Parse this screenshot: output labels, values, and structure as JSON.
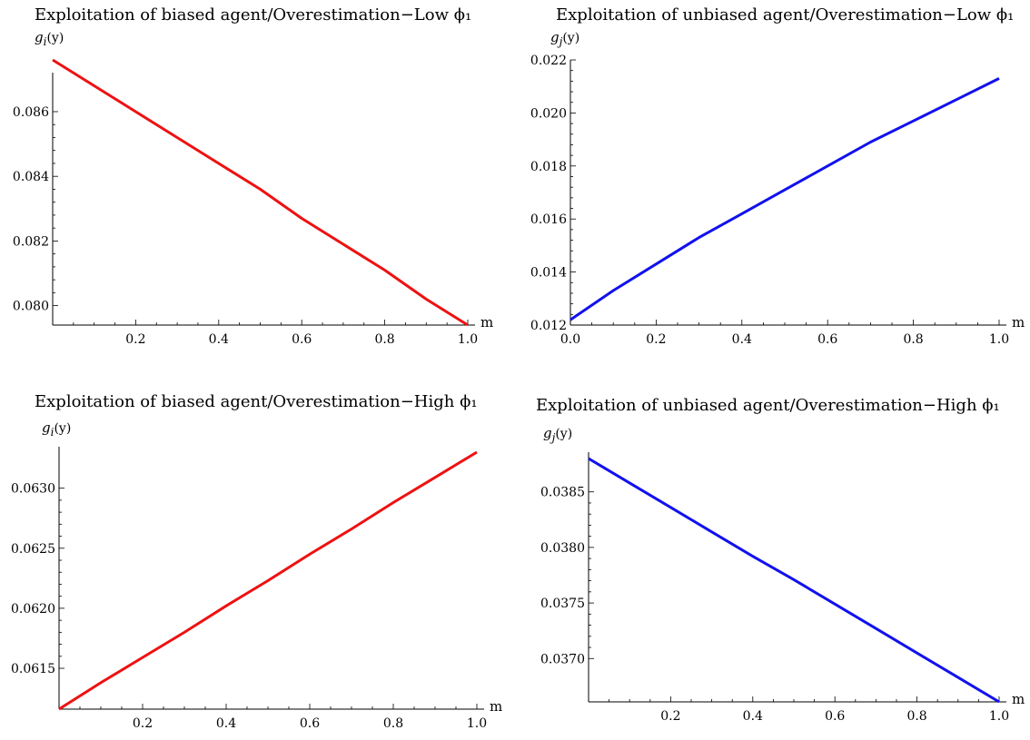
{
  "chart_data": [
    {
      "type": "line",
      "title": "Exploitation of  biased agent/Overestimation−Low ϕ₁",
      "ylabel_base": "g",
      "ylabel_sub": "i",
      "ylabel_arg": "(y)",
      "xlabel": "m",
      "xlim": [
        0,
        1
      ],
      "ylim": [
        0.0794,
        0.0876
      ],
      "xticks": [
        {
          "value": 0.2,
          "label": "0.2"
        },
        {
          "value": 0.4,
          "label": "0.4"
        },
        {
          "value": 0.6,
          "label": "0.6"
        },
        {
          "value": 0.8,
          "label": "0.8"
        },
        {
          "value": 1.0,
          "label": "1.0"
        }
      ],
      "yticks": [
        {
          "value": 0.08,
          "label": "0.080"
        },
        {
          "value": 0.082,
          "label": "0.082"
        },
        {
          "value": 0.084,
          "label": "0.084"
        },
        {
          "value": 0.086,
          "label": "0.086"
        }
      ],
      "color": "#ee1111",
      "series": [
        {
          "x": [
            0,
            0.1,
            0.2,
            0.3,
            0.4,
            0.5,
            0.6,
            0.7,
            0.8,
            0.9,
            1.0
          ],
          "y": [
            0.0876,
            0.0868,
            0.086,
            0.0852,
            0.0844,
            0.0836,
            0.0827,
            0.0819,
            0.0811,
            0.0802,
            0.0794
          ]
        }
      ]
    },
    {
      "type": "line",
      "title": "Exploitation of  unbiased agent/Overestimation−Low ϕ₁",
      "ylabel_base": "g",
      "ylabel_sub": "j",
      "ylabel_arg": "(y)",
      "xlabel": "m",
      "xlim": [
        0,
        1
      ],
      "ylim": [
        0.012,
        0.022
      ],
      "xticks": [
        {
          "value": 0.0,
          "label": "0.0"
        },
        {
          "value": 0.2,
          "label": "0.2"
        },
        {
          "value": 0.4,
          "label": "0.4"
        },
        {
          "value": 0.6,
          "label": "0.6"
        },
        {
          "value": 0.8,
          "label": "0.8"
        },
        {
          "value": 1.0,
          "label": "1.0"
        }
      ],
      "yticks": [
        {
          "value": 0.012,
          "label": "0.012"
        },
        {
          "value": 0.014,
          "label": "0.014"
        },
        {
          "value": 0.016,
          "label": "0.016"
        },
        {
          "value": 0.018,
          "label": "0.018"
        },
        {
          "value": 0.02,
          "label": "0.020"
        },
        {
          "value": 0.022,
          "label": "0.022"
        }
      ],
      "color": "#1111ee",
      "series": [
        {
          "x": [
            0,
            0.1,
            0.2,
            0.3,
            0.4,
            0.5,
            0.6,
            0.7,
            0.8,
            0.9,
            1.0
          ],
          "y": [
            0.0122,
            0.0133,
            0.0143,
            0.0153,
            0.0162,
            0.0171,
            0.018,
            0.0189,
            0.0197,
            0.0205,
            0.0213
          ]
        }
      ]
    },
    {
      "type": "line",
      "title": "Exploitation of  biased agent/Overestimation−High ϕ₁",
      "ylabel_base": "g",
      "ylabel_sub": "i",
      "ylabel_arg": "(y)",
      "xlabel": "m",
      "xlim": [
        0,
        1
      ],
      "ylim": [
        0.06116,
        0.0633
      ],
      "xticks": [
        {
          "value": 0.2,
          "label": "0.2"
        },
        {
          "value": 0.4,
          "label": "0.4"
        },
        {
          "value": 0.6,
          "label": "0.6"
        },
        {
          "value": 0.8,
          "label": "0.8"
        },
        {
          "value": 1.0,
          "label": "1.0"
        }
      ],
      "yticks": [
        {
          "value": 0.0615,
          "label": "0.0615"
        },
        {
          "value": 0.062,
          "label": "0.0620"
        },
        {
          "value": 0.0625,
          "label": "0.0625"
        },
        {
          "value": 0.063,
          "label": "0.0630"
        }
      ],
      "color": "#ee1111",
      "series": [
        {
          "x": [
            0,
            0.1,
            0.2,
            0.3,
            0.4,
            0.5,
            0.6,
            0.7,
            0.8,
            0.9,
            1.0
          ],
          "y": [
            0.06116,
            0.06138,
            0.06159,
            0.0618,
            0.06202,
            0.06223,
            0.06245,
            0.06266,
            0.06288,
            0.06309,
            0.0633
          ]
        }
      ]
    },
    {
      "type": "line",
      "title": "Exploitation of  unbiased agent/Overestimation−High ϕ₁",
      "ylabel_base": "g",
      "ylabel_sub": "j",
      "ylabel_arg": "(y)",
      "xlabel": "m",
      "xlim": [
        0,
        1
      ],
      "ylim": [
        0.03661,
        0.0388
      ],
      "xticks": [
        {
          "value": 0.2,
          "label": "0.2"
        },
        {
          "value": 0.4,
          "label": "0.4"
        },
        {
          "value": 0.6,
          "label": "0.6"
        },
        {
          "value": 0.8,
          "label": "0.8"
        },
        {
          "value": 1.0,
          "label": "1.0"
        }
      ],
      "yticks": [
        {
          "value": 0.037,
          "label": "0.0370"
        },
        {
          "value": 0.0375,
          "label": "0.0375"
        },
        {
          "value": 0.038,
          "label": "0.0380"
        },
        {
          "value": 0.0385,
          "label": "0.0385"
        }
      ],
      "color": "#1111ee",
      "series": [
        {
          "x": [
            0,
            0.1,
            0.2,
            0.3,
            0.4,
            0.5,
            0.6,
            0.7,
            0.8,
            0.9,
            1.0
          ],
          "y": [
            0.0388,
            0.03858,
            0.03836,
            0.03814,
            0.03792,
            0.03771,
            0.03749,
            0.03727,
            0.03705,
            0.03683,
            0.03661
          ]
        }
      ]
    }
  ]
}
